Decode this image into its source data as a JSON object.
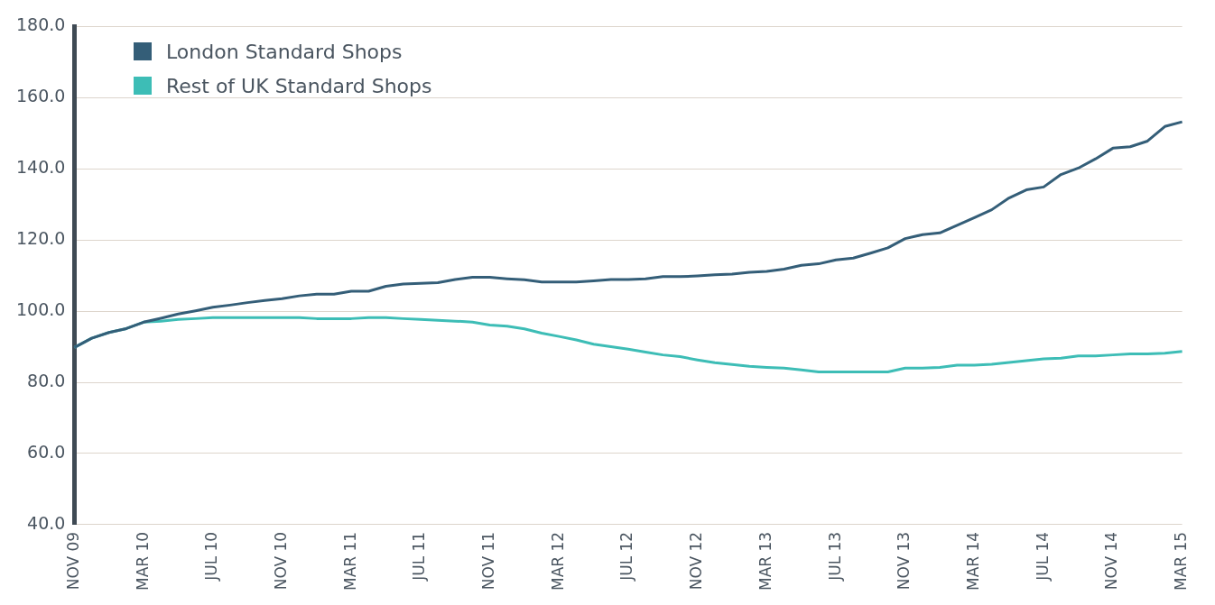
{
  "chart_data": {
    "type": "line",
    "categories": [
      "NOV 09",
      null,
      null,
      null,
      "MAR 10",
      null,
      null,
      null,
      "JUL 10",
      null,
      null,
      null,
      "NOV 10",
      null,
      null,
      null,
      "MAR 11",
      null,
      null,
      null,
      "JUL 11",
      null,
      null,
      null,
      "NOV 11",
      null,
      null,
      null,
      "MAR 12",
      null,
      null,
      null,
      "JUL 12",
      null,
      null,
      null,
      "NOV 12",
      null,
      null,
      null,
      "MAR 13",
      null,
      null,
      null,
      "JUL 13",
      null,
      null,
      null,
      "NOV 13",
      null,
      null,
      null,
      "MAR 14",
      null,
      null,
      null,
      "JUL 14",
      null,
      null,
      null,
      "NOV 14",
      null,
      null,
      null,
      "MAR 15"
    ],
    "series": [
      {
        "name": "London Standard Shops",
        "color": "#345e78",
        "values": [
          89.8,
          92.4,
          94.0,
          95.1,
          96.9,
          98.0,
          99.2,
          100.1,
          101.1,
          101.7,
          102.4,
          103.0,
          103.5,
          104.3,
          104.8,
          104.8,
          105.6,
          105.6,
          107.0,
          107.6,
          107.8,
          108.0,
          108.9,
          109.5,
          109.5,
          109.1,
          108.8,
          108.2,
          108.2,
          108.2,
          108.5,
          108.9,
          108.9,
          109.1,
          109.7,
          109.7,
          109.9,
          110.2,
          110.4,
          110.9,
          111.2,
          111.8,
          112.9,
          113.3,
          114.4,
          114.9,
          116.3,
          117.8,
          120.4,
          121.5,
          122.0,
          124.1,
          126.3,
          128.5,
          131.8,
          134.1,
          134.9,
          138.4,
          140.2,
          142.8,
          145.8,
          146.2,
          147.8,
          151.9,
          153.2
        ]
      },
      {
        "name": "Rest of UK Standard Shops",
        "color": "#3dbdb6",
        "values": [
          89.8,
          92.4,
          94.0,
          95.1,
          96.9,
          97.2,
          97.7,
          97.9,
          98.2,
          98.2,
          98.2,
          98.2,
          98.2,
          98.2,
          97.9,
          97.9,
          97.9,
          98.2,
          98.2,
          97.9,
          97.7,
          97.4,
          97.2,
          96.9,
          96.1,
          95.8,
          95.0,
          93.8,
          92.9,
          91.9,
          90.7,
          90.0,
          89.3,
          88.5,
          87.7,
          87.2,
          86.3,
          85.5,
          85.0,
          84.5,
          84.2,
          84.0,
          83.5,
          82.9,
          82.9,
          82.9,
          82.9,
          82.9,
          84.0,
          84.0,
          84.2,
          84.8,
          84.8,
          85.1,
          85.6,
          86.1,
          86.6,
          86.8,
          87.4,
          87.4,
          87.7,
          88.0,
          88.0,
          88.2,
          88.7
        ]
      }
    ],
    "ylim": [
      40,
      180
    ],
    "yticks": [
      {
        "value": 40,
        "label": "40.0"
      },
      {
        "value": 60,
        "label": "60.0"
      },
      {
        "value": 80,
        "label": "80.0"
      },
      {
        "value": 100,
        "label": "100.0"
      },
      {
        "value": 120,
        "label": "120.0"
      },
      {
        "value": 140,
        "label": "140.0"
      },
      {
        "value": 160,
        "label": "160.0"
      },
      {
        "value": 180,
        "label": "180.0"
      }
    ],
    "grid": "y",
    "legend": "top left",
    "marker": "none",
    "line_style": "solid"
  }
}
